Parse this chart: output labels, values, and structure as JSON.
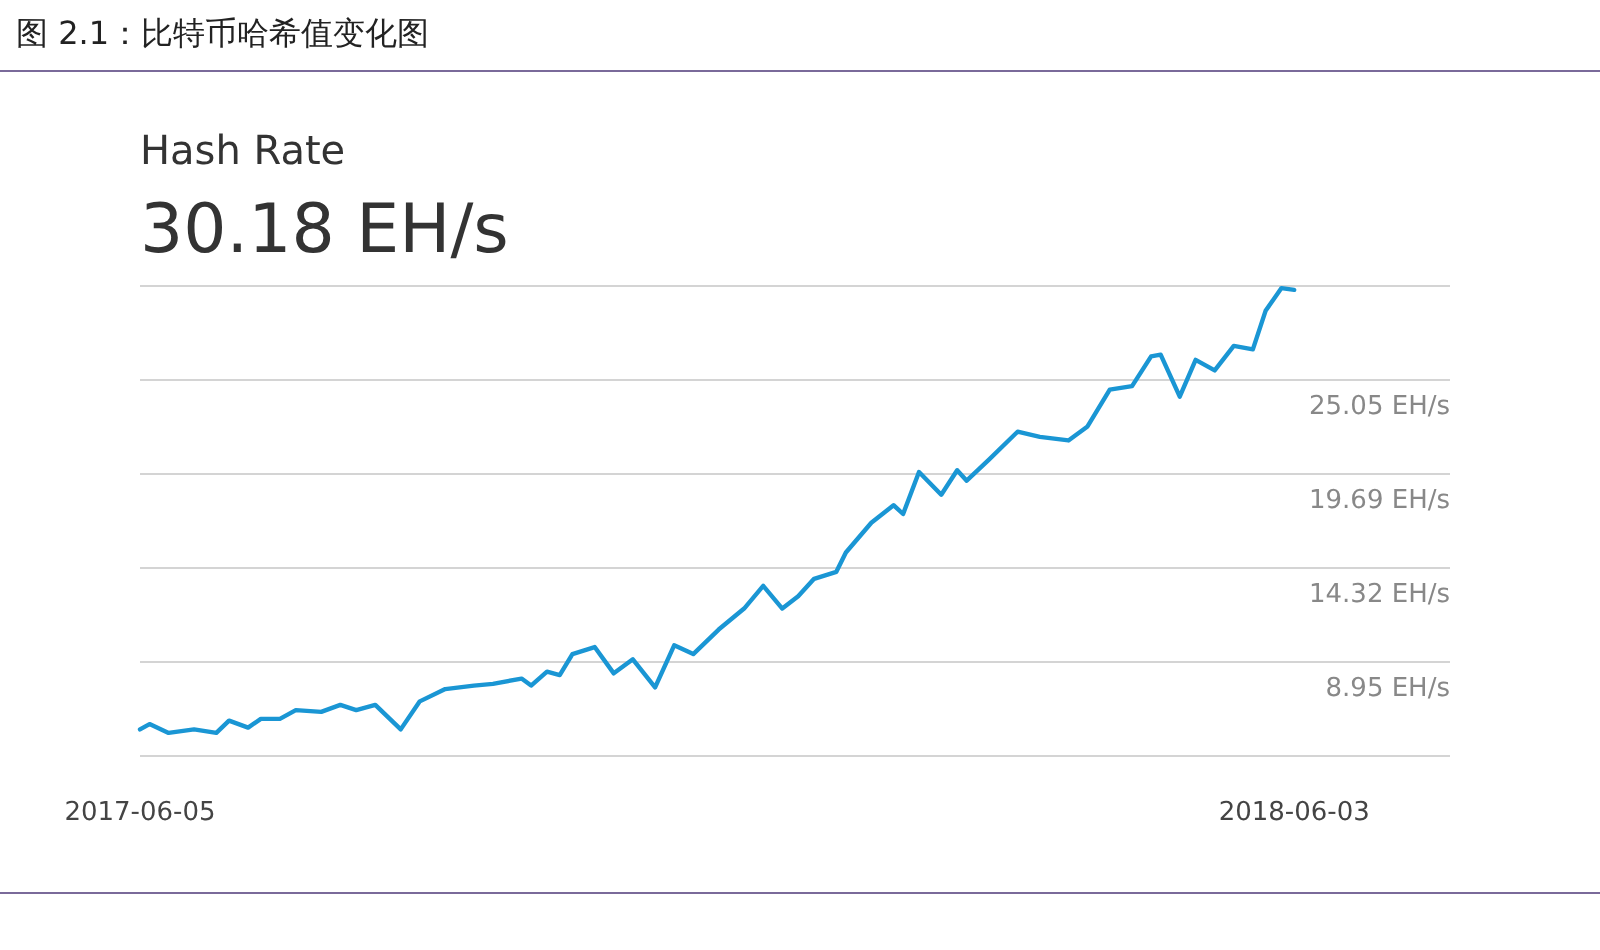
{
  "chart_data": {
    "type": "line",
    "title": "图 2.1：比特币哈希值变化图",
    "subtitle": "Hash Rate",
    "annotations": [
      "30.18 EH/s"
    ],
    "x": [
      "2017-06-05",
      "2017-06-08",
      "2017-06-14",
      "2017-06-22",
      "2017-06-29",
      "2017-07-03",
      "2017-07-09",
      "2017-07-13",
      "2017-07-19",
      "2017-07-24",
      "2017-08-01",
      "2017-08-07",
      "2017-08-12",
      "2017-08-18",
      "2017-08-26",
      "2017-09-01",
      "2017-09-09",
      "2017-09-18",
      "2017-09-24",
      "2017-10-03",
      "2017-10-06",
      "2017-10-11",
      "2017-10-15",
      "2017-10-19",
      "2017-10-26",
      "2017-11-01",
      "2017-11-07",
      "2017-11-14",
      "2017-11-20",
      "2017-11-26",
      "2017-12-04",
      "2017-12-12",
      "2017-12-18",
      "2017-12-24",
      "2017-12-29",
      "2018-01-03",
      "2018-01-10",
      "2018-01-13",
      "2018-01-21",
      "2018-01-28",
      "2018-01-31",
      "2018-02-05",
      "2018-02-12",
      "2018-02-17",
      "2018-02-20",
      "2018-02-27",
      "2018-03-08",
      "2018-03-15",
      "2018-03-24",
      "2018-03-30",
      "2018-04-06",
      "2018-04-13",
      "2018-04-19",
      "2018-04-22",
      "2018-04-28",
      "2018-05-03",
      "2018-05-09",
      "2018-05-15",
      "2018-05-21",
      "2018-05-25",
      "2018-05-30",
      "2018-06-03"
    ],
    "series": [
      {
        "color": "#1a96d4",
        "values": [
          5.1,
          5.4,
          4.9,
          5.1,
          4.9,
          5.6,
          5.2,
          5.7,
          5.7,
          6.2,
          6.1,
          6.5,
          6.2,
          6.5,
          5.1,
          6.7,
          7.4,
          7.6,
          7.7,
          8.0,
          7.6,
          8.4,
          8.2,
          9.4,
          9.8,
          8.3,
          9.1,
          7.5,
          9.9,
          9.4,
          10.8,
          12.0,
          13.3,
          12.0,
          12.7,
          13.7,
          14.1,
          15.2,
          16.9,
          17.9,
          17.4,
          19.8,
          18.5,
          19.9,
          19.3,
          20.5,
          22.1,
          21.8,
          21.6,
          22.4,
          24.5,
          24.7,
          26.4,
          26.5,
          24.1,
          26.2,
          25.6,
          27.0,
          26.8,
          29.0,
          30.3,
          30.2
        ]
      }
    ],
    "xlim": [
      "2017-06-05",
      "2018-07-22"
    ],
    "xticks": [
      "2017-06-05",
      "2018-06-03"
    ],
    "ylim": [
      3.58,
      30.42
    ],
    "yticks": [
      {
        "value": 3.58,
        "label": null
      },
      {
        "value": 30.42,
        "label": null
      },
      {
        "value": 8.95,
        "label": "8.95 EH/s"
      },
      {
        "value": 14.32,
        "label": "14.32 EH/s"
      },
      {
        "value": 19.69,
        "label": "19.69 EH/s"
      },
      {
        "value": 25.05,
        "label": "25.05 EH/s"
      }
    ],
    "grid": "y",
    "marker": "none",
    "line_style": "solid"
  }
}
